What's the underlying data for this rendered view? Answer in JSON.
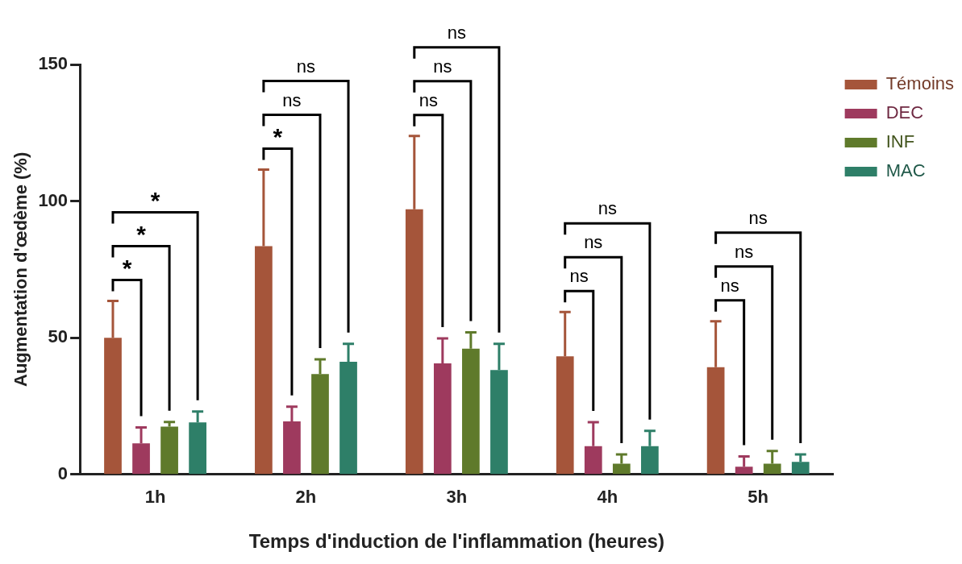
{
  "chart_data": {
    "type": "bar",
    "xlabel": "Temps d'induction de l'inflammation (heures)",
    "ylabel": "Augmentation d'œdème (%)",
    "categories": [
      "1h",
      "2h",
      "3h",
      "4h",
      "5h"
    ],
    "series": [
      {
        "name": "Témoins",
        "color": "#a5553a",
        "values": [
          50,
          83.5,
          97,
          43.2,
          39.2
        ],
        "errors": [
          [
            50,
            63.5
          ],
          [
            83.5,
            111.5
          ],
          [
            97,
            123.8
          ],
          [
            43.2,
            59.4
          ],
          [
            39.2,
            56
          ]
        ]
      },
      {
        "name": "DEC",
        "color": "#9e3a5e",
        "values": [
          11.4,
          19.4,
          40.6,
          10.3,
          2.8
        ],
        "errors": [
          [
            11.4,
            17.2
          ],
          [
            19.4,
            24.8
          ],
          [
            40.6,
            49.8
          ],
          [
            10.3,
            19.1
          ],
          [
            2.8,
            6.6
          ]
        ]
      },
      {
        "name": "INF",
        "color": "#5f7a2b",
        "values": [
          17.5,
          36.7,
          46,
          3.9,
          3.9
        ],
        "errors": [
          [
            17.5,
            19.2
          ],
          [
            36.7,
            42.1
          ],
          [
            46,
            52
          ],
          [
            3.9,
            7.3
          ],
          [
            3.9,
            8.6
          ]
        ]
      },
      {
        "name": "MAC",
        "color": "#2e7f68",
        "values": [
          19,
          41.2,
          38.2,
          10.3,
          4.6
        ],
        "errors": [
          [
            19,
            23
          ],
          [
            41.2,
            47.8
          ],
          [
            38.2,
            47.8
          ],
          [
            10.3,
            15.9
          ],
          [
            4.6,
            7.3
          ]
        ]
      }
    ],
    "ylim": [
      0,
      150
    ],
    "yticks": [
      0,
      50,
      100,
      150
    ],
    "grid": false,
    "legend": "top right",
    "annotations": [
      "*",
      "*",
      "*",
      "*",
      "ns",
      "ns",
      "ns",
      "ns",
      "ns",
      "ns",
      "ns",
      "ns",
      "ns",
      "ns",
      "ns"
    ]
  }
}
